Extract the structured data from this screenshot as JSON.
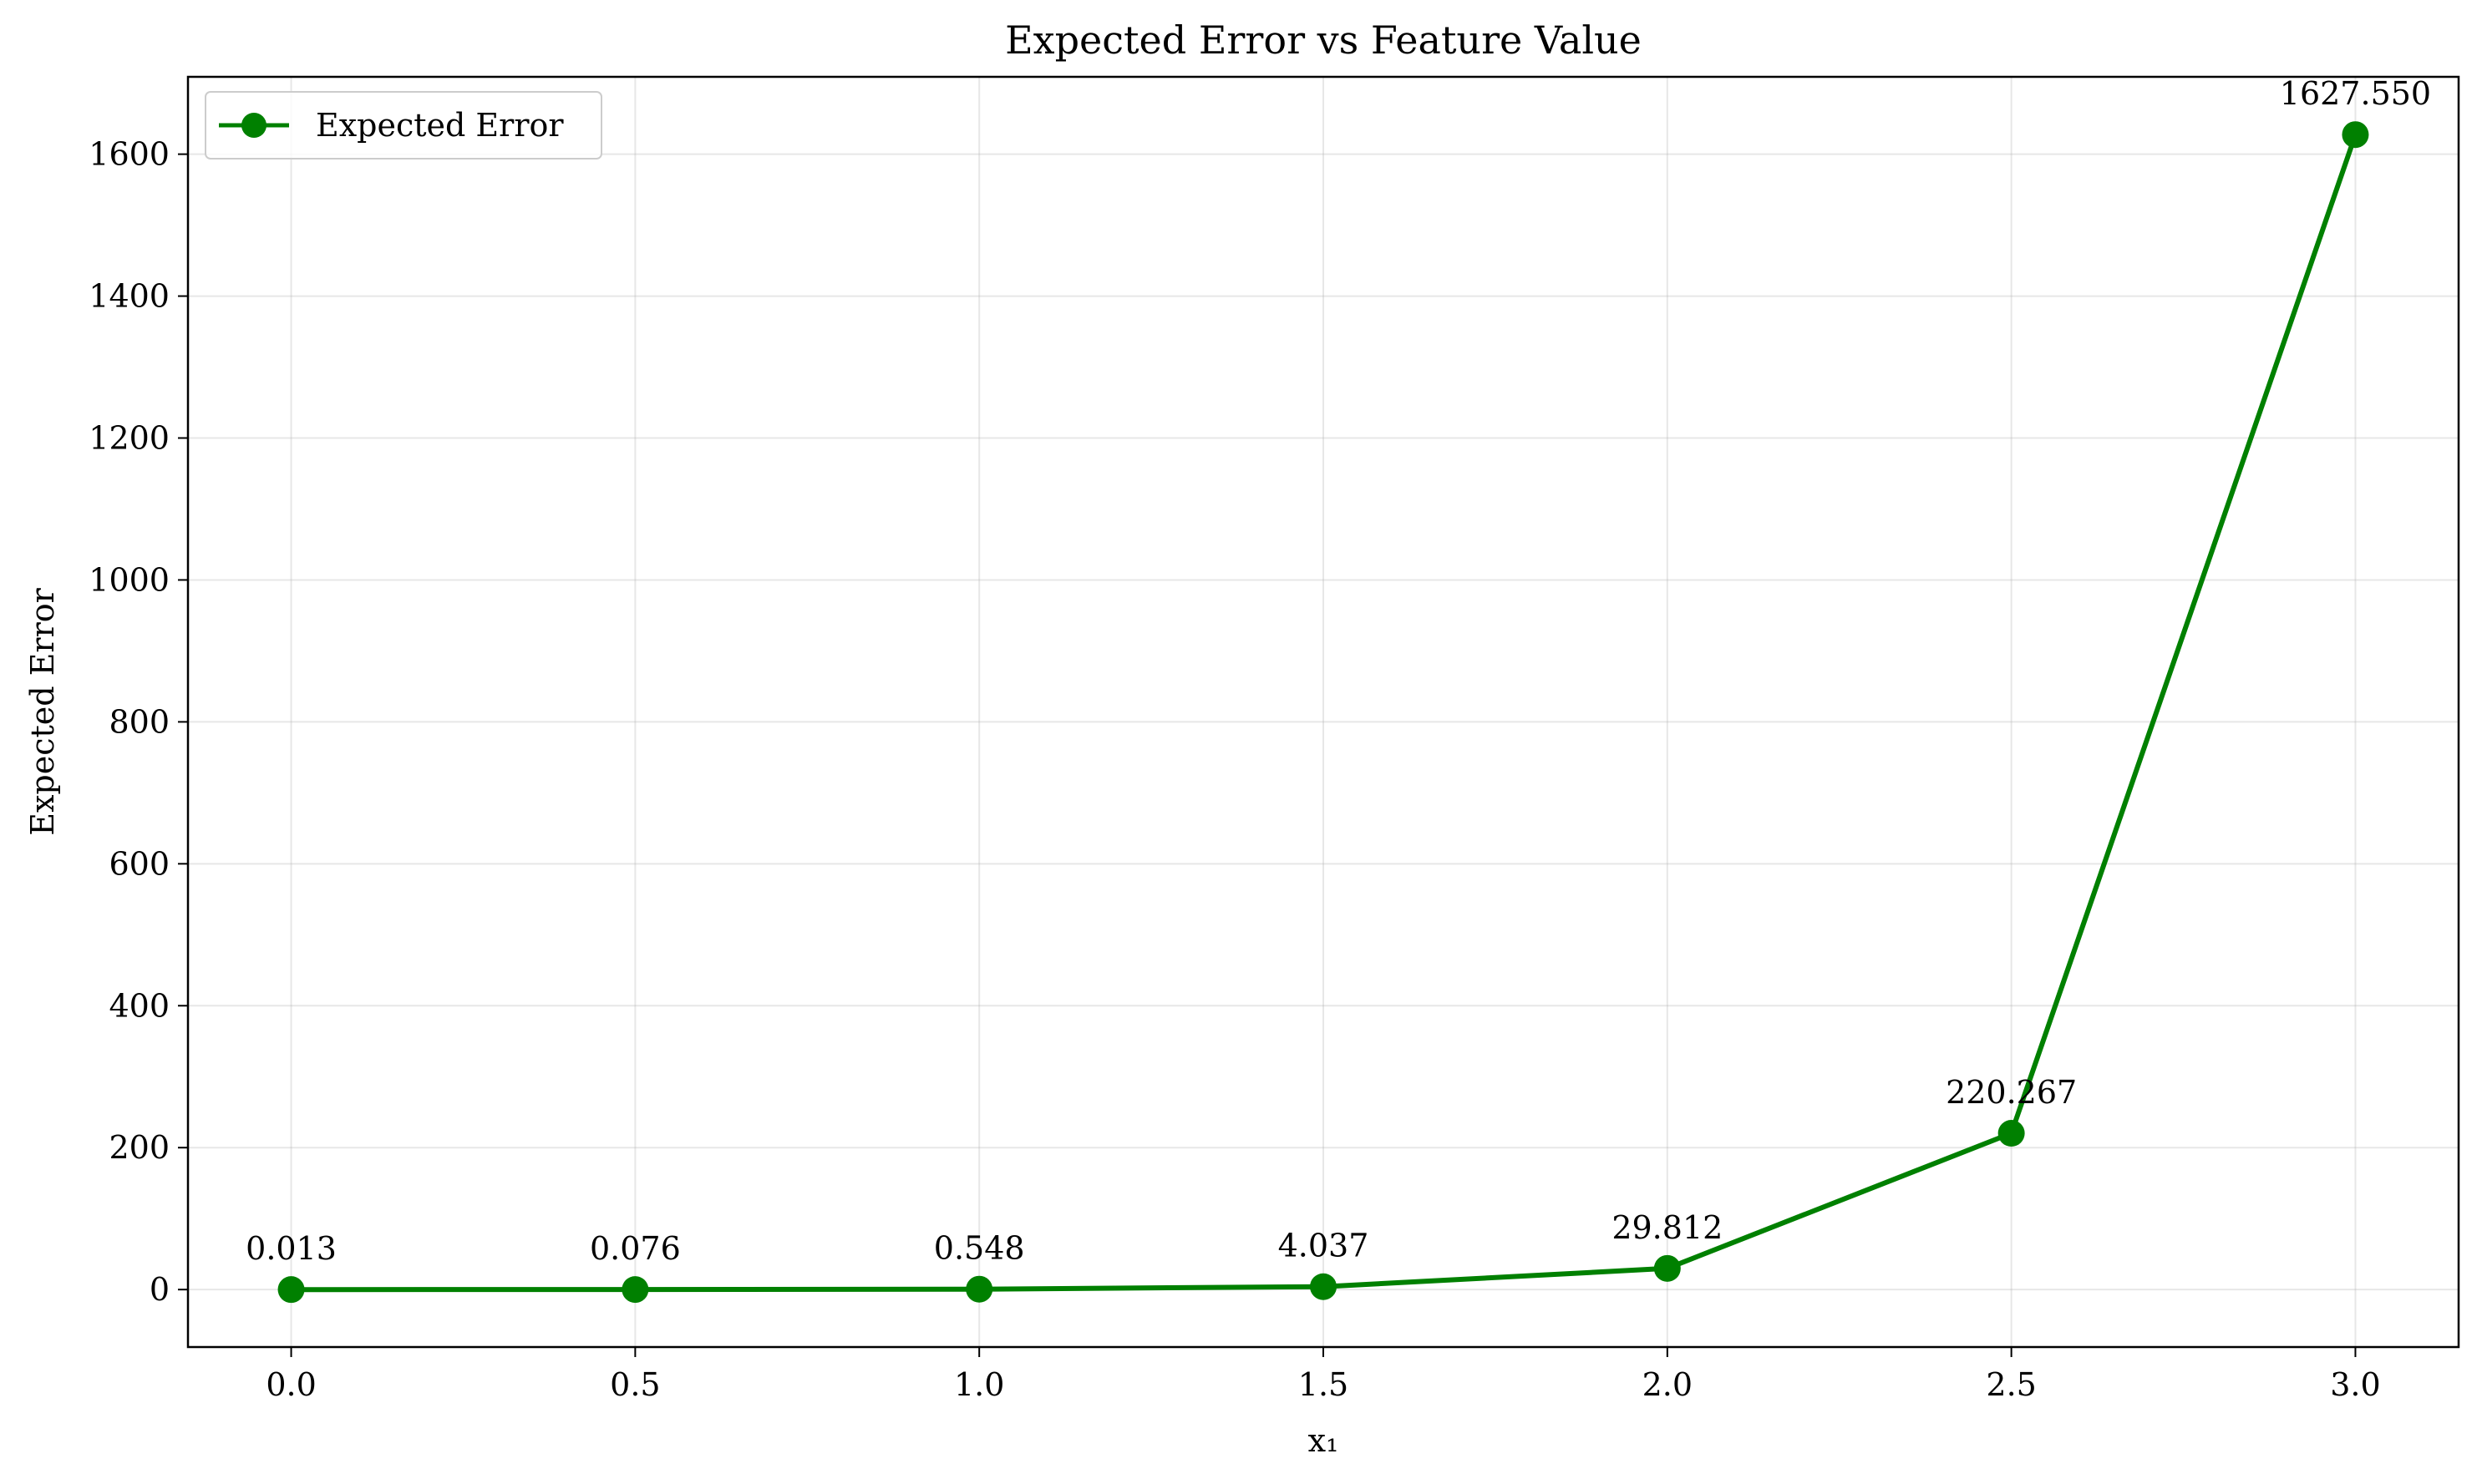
{
  "chart_data": {
    "type": "line",
    "title": "Expected Error vs Feature Value",
    "xlabel": "x₁",
    "ylabel": "Expected Error",
    "x": [
      0.0,
      0.5,
      1.0,
      1.5,
      2.0,
      2.5,
      3.0
    ],
    "series": [
      {
        "name": "Expected Error",
        "values": [
          0.013,
          0.076,
          0.548,
          4.037,
          29.812,
          220.267,
          1627.55
        ],
        "labels": [
          "0.013",
          "0.076",
          "0.548",
          "4.037",
          "29.812",
          "220.267",
          "1627.550"
        ],
        "color": "#008000",
        "marker": "circle"
      }
    ],
    "xlim": [
      -0.15,
      3.15
    ],
    "ylim": [
      -81,
      1709
    ],
    "xticks": [
      0.0,
      0.5,
      1.0,
      1.5,
      2.0,
      2.5,
      3.0
    ],
    "xtick_labels": [
      "0.0",
      "0.5",
      "1.0",
      "1.5",
      "2.0",
      "2.5",
      "3.0"
    ],
    "yticks": [
      0,
      200,
      400,
      600,
      800,
      1000,
      1200,
      1400,
      1600
    ],
    "ytick_labels": [
      "0",
      "200",
      "400",
      "600",
      "800",
      "1000",
      "1200",
      "1400",
      "1600"
    ],
    "grid": true,
    "legend_position": "top-left"
  }
}
